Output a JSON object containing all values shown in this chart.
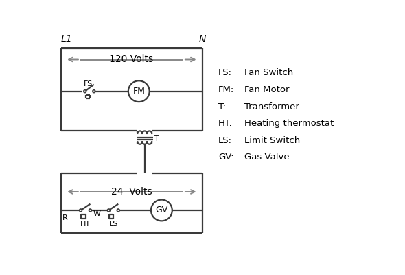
{
  "bg_color": "#ffffff",
  "line_color": "#3a3a3a",
  "line_width": 1.6,
  "arrow_color": "#888888",
  "legend": [
    [
      "FS:",
      "Fan Switch"
    ],
    [
      "FM:",
      "Fan Motor"
    ],
    [
      "T:",
      "Transformer"
    ],
    [
      "HT:",
      "Heating thermostat"
    ],
    [
      "LS:",
      "Limit Switch"
    ],
    [
      "GV:",
      "Gas Valve"
    ]
  ],
  "L1_label": "L1",
  "N_label": "N",
  "top_volts": "120 Volts",
  "bot_volts": "24  Volts",
  "T_label": "T"
}
